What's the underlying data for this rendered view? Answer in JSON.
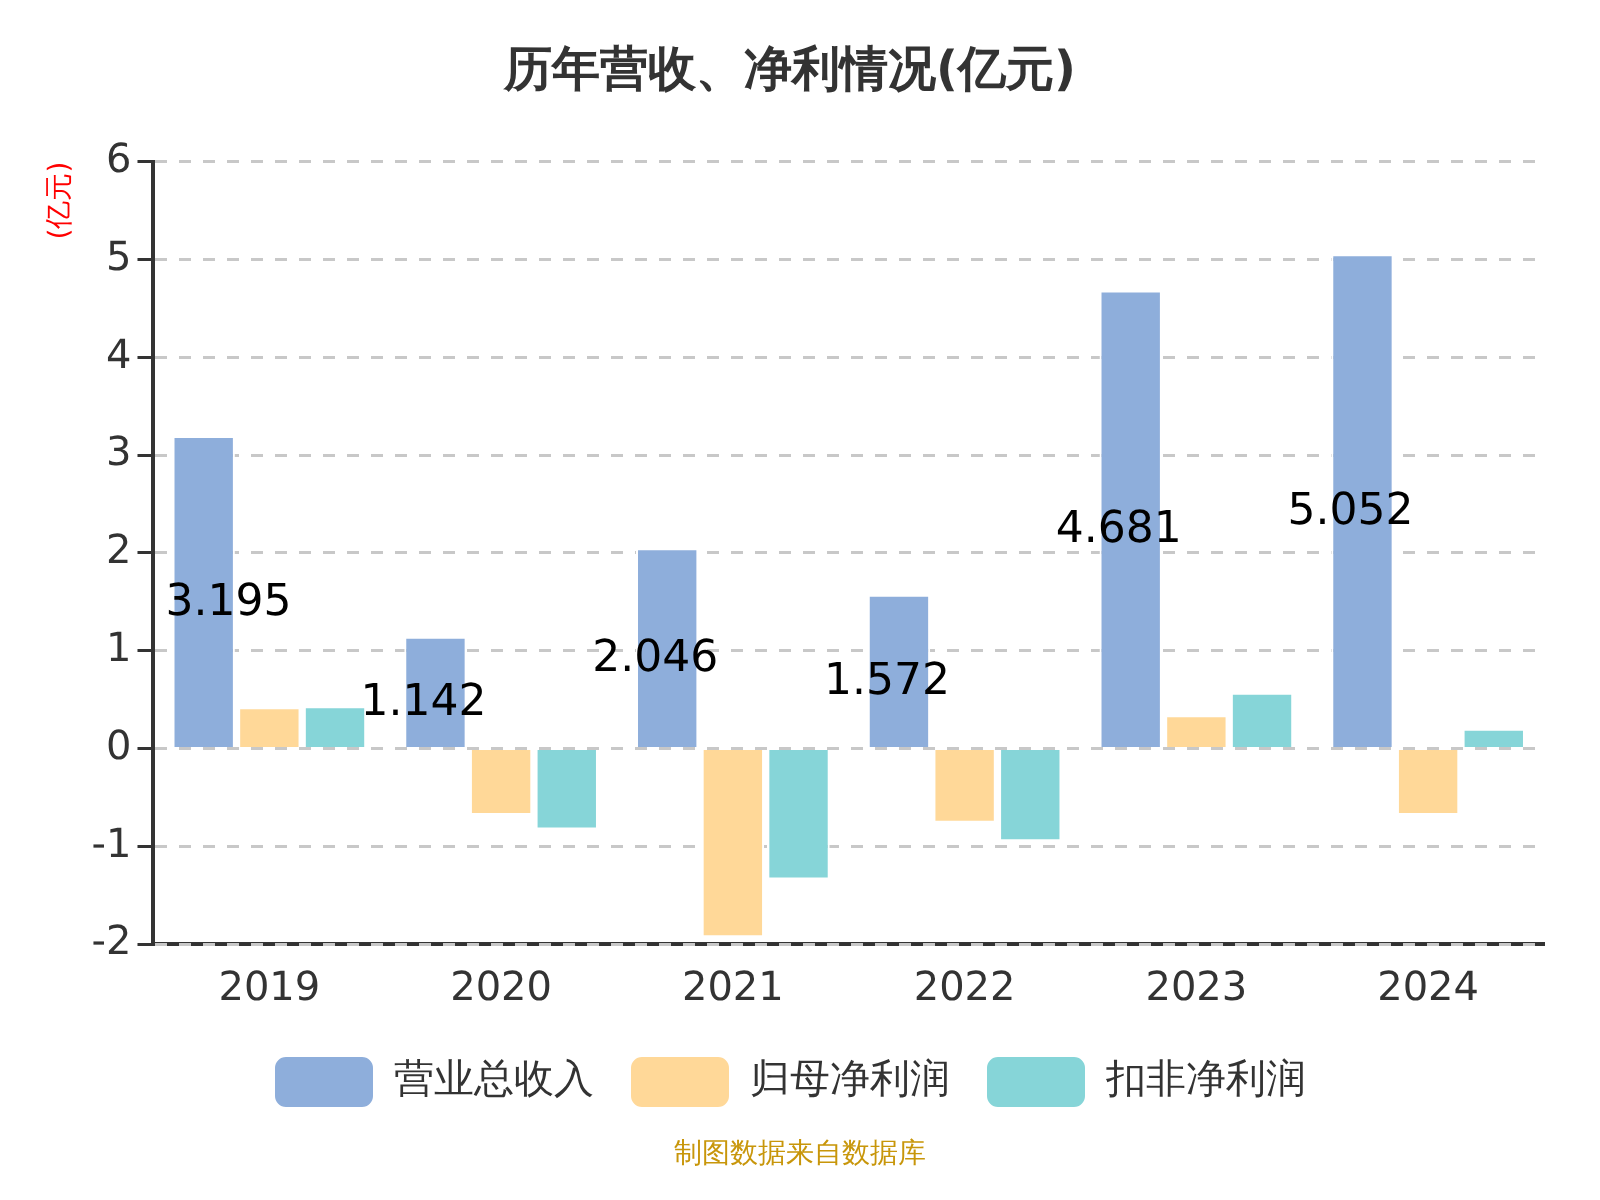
{
  "chart_data": {
    "type": "bar",
    "title": "历年营收、净利情况(亿元)",
    "ylabel": "(亿元)",
    "categories": [
      "2019",
      "2020",
      "2021",
      "2022",
      "2023",
      "2024"
    ],
    "series": [
      {
        "name": "营业总收入",
        "color": "#8eaedb",
        "values": [
          3.195,
          1.142,
          2.046,
          1.572,
          4.681,
          5.052
        ],
        "value_labels": [
          "3.195",
          "1.142",
          "2.046",
          "1.572",
          "4.681",
          "5.052"
        ]
      },
      {
        "name": "归母净利润",
        "color": "#ffd898",
        "values": [
          0.42,
          -0.68,
          -1.93,
          -0.76,
          0.34,
          -0.68
        ]
      },
      {
        "name": "扣非净利润",
        "color": "#86d5d8",
        "values": [
          0.43,
          -0.83,
          -1.34,
          -0.95,
          0.57,
          0.2
        ]
      }
    ],
    "ylim": [
      -2,
      6
    ],
    "yticks": [
      -2,
      -1,
      0,
      1,
      2,
      3,
      4,
      5,
      6
    ],
    "grid": "y",
    "legend": "bottom",
    "annotations": [
      "制图数据来自数据库"
    ]
  }
}
